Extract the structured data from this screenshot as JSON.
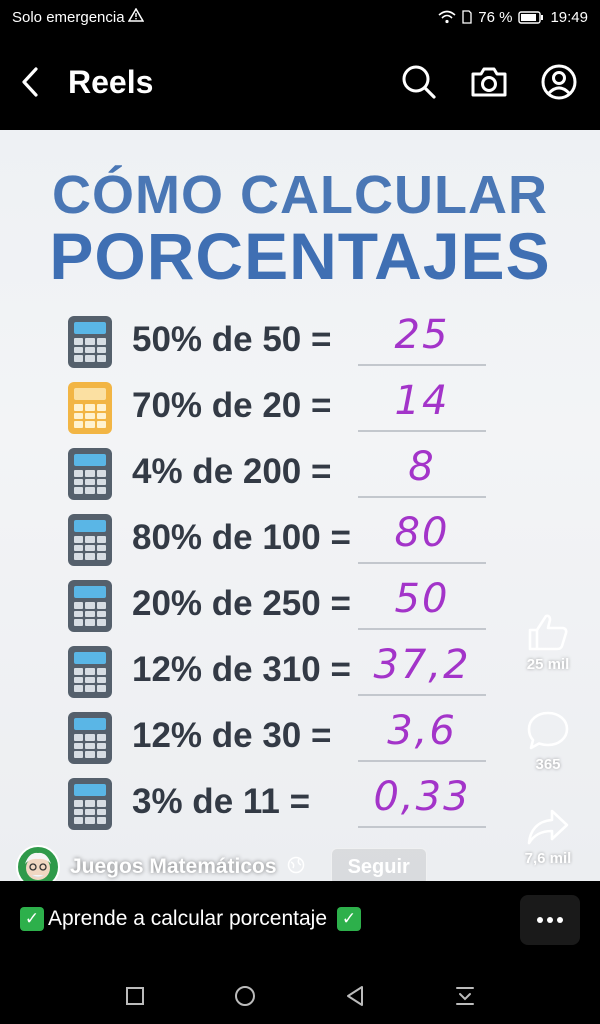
{
  "status_bar": {
    "carrier": "Solo emergencia",
    "battery": "76 %",
    "time": "19:49"
  },
  "app_bar": {
    "title": "Reels"
  },
  "video": {
    "title_line1": "CÓMO CALCULAR",
    "title_line2": "PORCENTAJES",
    "rows": [
      {
        "expr": "50% de 50 =",
        "answer": "25"
      },
      {
        "expr": "70% de 20 =",
        "answer": "14"
      },
      {
        "expr": "4% de 200 =",
        "answer": "8"
      },
      {
        "expr": "80% de 100 =",
        "answer": "80"
      },
      {
        "expr": "20% de 250 =",
        "answer": "50"
      },
      {
        "expr": "12% de 310 =",
        "answer": "37,2"
      },
      {
        "expr": "12% de 30 =",
        "answer": "3,6"
      },
      {
        "expr": "3% de 11 =",
        "answer": "0,33"
      }
    ]
  },
  "rail": {
    "likes": "25 mil",
    "comments": "365",
    "shares": "7,6 mil"
  },
  "channel": {
    "name": "Juegos Matemáticos",
    "follow_label": "Seguir"
  },
  "caption": {
    "text": "Aprende a calcular porcentaje"
  },
  "colors": {
    "title_blue": "#3f6fb3",
    "answer_purple": "#a334c9",
    "check_green": "#2db04b"
  }
}
